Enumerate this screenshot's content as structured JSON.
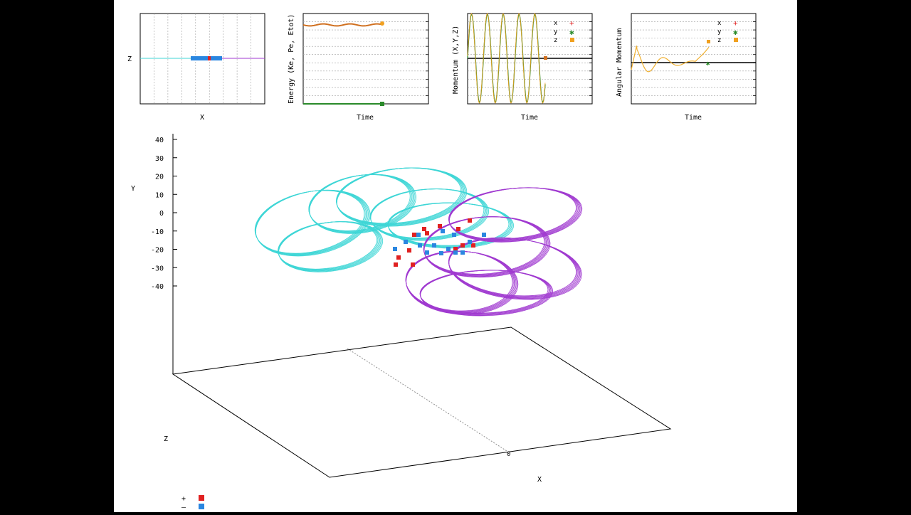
{
  "colors": {
    "letterbox": "#000000",
    "canvas": "#ffffff",
    "cyan": "#3fd6d6",
    "magenta": "#a03ad0",
    "red": "#e02020",
    "blue": "#2a86e0",
    "orange": "#f0a020",
    "green": "#2a8a2a",
    "grid": "#a0a0a0",
    "axis": "#000000"
  },
  "chart_data": [
    {
      "type": "scatter",
      "panel": "xz-projection",
      "xlabel": "X",
      "ylabel": "Z",
      "grid": true,
      "series": [
        {
          "color": "cyan",
          "description": "negative-charge trajectories projected on X-Z (flat line)"
        },
        {
          "color": "magenta",
          "description": "positive-charge trajectories projected on X-Z (flat line)"
        },
        {
          "color": "blue",
          "description": "current particle positions cluster"
        }
      ]
    },
    {
      "type": "line",
      "panel": "energy",
      "xlabel": "Time",
      "ylabel": "Energy (Ke, Pe, Etot)",
      "grid": true,
      "series": [
        {
          "color": "orange",
          "description": "total energy, nearly constant near top with small ripple"
        },
        {
          "color": "green",
          "description": "energy component near zero baseline"
        }
      ]
    },
    {
      "type": "line",
      "panel": "momentum",
      "xlabel": "Time",
      "ylabel": "Momentum (X,Y,Z)",
      "grid": true,
      "legend": [
        "x",
        "y",
        "z"
      ],
      "series": [
        {
          "name": "x",
          "color": "red",
          "description": "oscillating"
        },
        {
          "name": "y",
          "color": "green",
          "description": "oscillating full-range sine, about 5 periods"
        },
        {
          "name": "z",
          "color": "orange",
          "description": "near zero"
        }
      ]
    },
    {
      "type": "line",
      "panel": "angular-momentum",
      "xlabel": "Time",
      "ylabel": "Angular Momentum",
      "grid": true,
      "legend": [
        "x",
        "y",
        "z"
      ],
      "series": [
        {
          "name": "x",
          "color": "red",
          "description": "near zero"
        },
        {
          "name": "y",
          "color": "green",
          "description": "near zero"
        },
        {
          "name": "z",
          "color": "orange",
          "description": "damped-looking oscillation around zero, rising at the end"
        }
      ]
    },
    {
      "type": "scatter",
      "panel": "3d-trajectories",
      "xlabel": "X",
      "ylabel": "Y",
      "zlabel": "Z",
      "y_ticks": [
        40,
        30,
        20,
        10,
        0,
        -10,
        -20,
        -30,
        -40
      ],
      "x_ticks": [
        0
      ],
      "ylim": [
        -40,
        40
      ],
      "legend_entries": [
        {
          "label": "+",
          "color": "red"
        },
        {
          "label": "–",
          "color": "blue"
        }
      ],
      "series": [
        {
          "name": "+",
          "color": "red",
          "description": "positive charges (red squares) near center, x≈-10..10, y≈-25..-5"
        },
        {
          "name": "–",
          "color": "blue",
          "description": "negative charges (blue squares) near center"
        },
        {
          "color": "cyan",
          "description": "multiple loop orbits, upper-left group"
        },
        {
          "color": "magenta",
          "description": "multiple loop orbits, lower-right group"
        }
      ]
    }
  ]
}
